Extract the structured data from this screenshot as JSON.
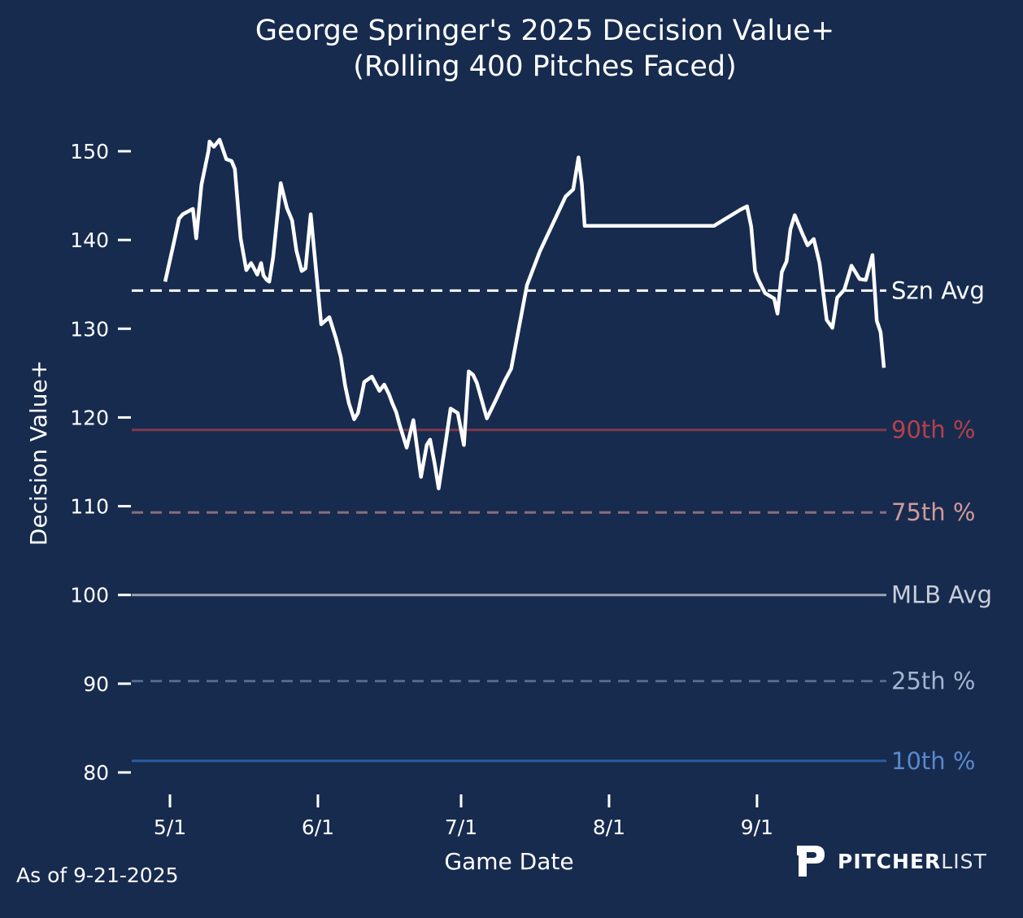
{
  "title_line1": "George Springer's 2025 Decision Value+",
  "title_line2": "(Rolling 400 Pitches Faced)",
  "footnote": "As of 9-21-2025",
  "logo": {
    "bold": "PITCHER",
    "light": "LIST",
    "icon": "pitcherlist-p-logo"
  },
  "chart_data": {
    "type": "line",
    "title": "George Springer's 2025 Decision Value+ (Rolling 400 Pitches Faced)",
    "xlabel": "Game Date",
    "ylabel": "Decision Value+",
    "ylim": [
      78,
      156
    ],
    "xlim_days_from_may1": [
      -8,
      150
    ],
    "yticks": [
      80,
      90,
      100,
      110,
      120,
      130,
      140,
      150
    ],
    "xticks": [
      {
        "label": "5/1",
        "day": 0
      },
      {
        "label": "6/1",
        "day": 31
      },
      {
        "label": "7/1",
        "day": 61
      },
      {
        "label": "8/1",
        "day": 92
      },
      {
        "label": "9/1",
        "day": 123
      }
    ],
    "grid": false,
    "reference_lines": [
      {
        "label": "Szn Avg",
        "value": 134.3,
        "style": "dashed",
        "color": "#ffffff",
        "label_color": "#ffffff"
      },
      {
        "label": "90th %",
        "value": 118.6,
        "style": "solid",
        "color": "#7e3a4b",
        "label_color": "#b5414a"
      },
      {
        "label": "75th %",
        "value": 109.3,
        "style": "dashed",
        "color": "#8a6e7c",
        "label_color": "#d29a9a"
      },
      {
        "label": "MLB Avg",
        "value": 100,
        "style": "solid",
        "color": "#9aa3b3",
        "label_color": "#c8ced8"
      },
      {
        "label": "25th %",
        "value": 90.3,
        "style": "dashed",
        "color": "#56698a",
        "label_color": "#a4b5cf"
      },
      {
        "label": "10th %",
        "value": 81.3,
        "style": "solid",
        "color": "#2a5ca0",
        "label_color": "#5a89c9"
      }
    ],
    "series": [
      {
        "name": "Decision Value+",
        "color": "#ffffff",
        "x_days_from_may1": [
          -1.0,
          0.9,
          1.9,
          2.7,
          4.8,
          5.5,
          6.6,
          8.1,
          8.3,
          9.2,
          10.4,
          11.8,
          12.9,
          13.6,
          14.8,
          16.0,
          17.0,
          18.3,
          19.1,
          19.6,
          20.3,
          20.8,
          21.6,
          23.2,
          24.5,
          25.6,
          26.5,
          27.6,
          28.4,
          29.5,
          31.7,
          33.4,
          34.8,
          35.8,
          36.7,
          37.5,
          38.6,
          39.4,
          40.7,
          42.3,
          43.9,
          44.9,
          45.9,
          46.6,
          47.4,
          48.1,
          49.6,
          51.0,
          52.6,
          53.8,
          54.5,
          55.5,
          56.3,
          57.8,
          58.8,
          60.3,
          61.6,
          62.6,
          63.5,
          64.3,
          66.4,
          67.4,
          68.3,
          70.2,
          71.5,
          74.8,
          77.5,
          79.5,
          82.9,
          84.5,
          85.6,
          86.3,
          86.9,
          88.3,
          89.6,
          91.3,
          93.4,
          97.6,
          105.9,
          114.0,
          119.5,
          120.9,
          121.8,
          122.6,
          123.2,
          124.7,
          126.6,
          127.3,
          128.2,
          129.2,
          130.0,
          130.9,
          132.6,
          133.6,
          134.9,
          136.1,
          137.6,
          138.8,
          139.8,
          141.3,
          142.8,
          144.5,
          145.8,
          147.2,
          148.1,
          148.9,
          149.6
        ],
        "values": [
          135.3,
          139.9,
          142.4,
          142.9,
          143.5,
          140.2,
          146.2,
          150.1,
          151.1,
          150.5,
          151.3,
          149.1,
          148.9,
          148.0,
          140.2,
          136.6,
          137.4,
          136.1,
          137.4,
          136.0,
          135.5,
          135.3,
          138.0,
          146.4,
          143.6,
          142.2,
          138.8,
          136.5,
          136.8,
          142.9,
          130.5,
          131.3,
          128.9,
          126.8,
          123.6,
          121.6,
          119.8,
          120.5,
          124.0,
          124.6,
          123.0,
          123.7,
          122.6,
          121.6,
          120.6,
          119.2,
          116.6,
          119.7,
          113.3,
          116.9,
          117.5,
          114.7,
          112.0,
          117.3,
          121.0,
          120.5,
          116.9,
          125.2,
          124.8,
          123.9,
          119.9,
          121.0,
          122.0,
          124.2,
          125.5,
          134.9,
          138.7,
          141.0,
          144.9,
          145.7,
          149.3,
          146.3,
          141.6,
          141.6,
          141.6,
          141.6,
          141.6,
          141.6,
          141.6,
          141.6,
          143.4,
          143.8,
          141.5,
          136.5,
          135.6,
          134.0,
          133.4,
          131.7,
          136.4,
          137.6,
          141.2,
          142.8,
          140.6,
          139.4,
          140.1,
          137.4,
          131.0,
          130.1,
          133.5,
          134.4,
          137.1,
          135.6,
          135.5,
          138.3,
          130.9,
          129.6,
          125.6
        ]
      }
    ]
  }
}
